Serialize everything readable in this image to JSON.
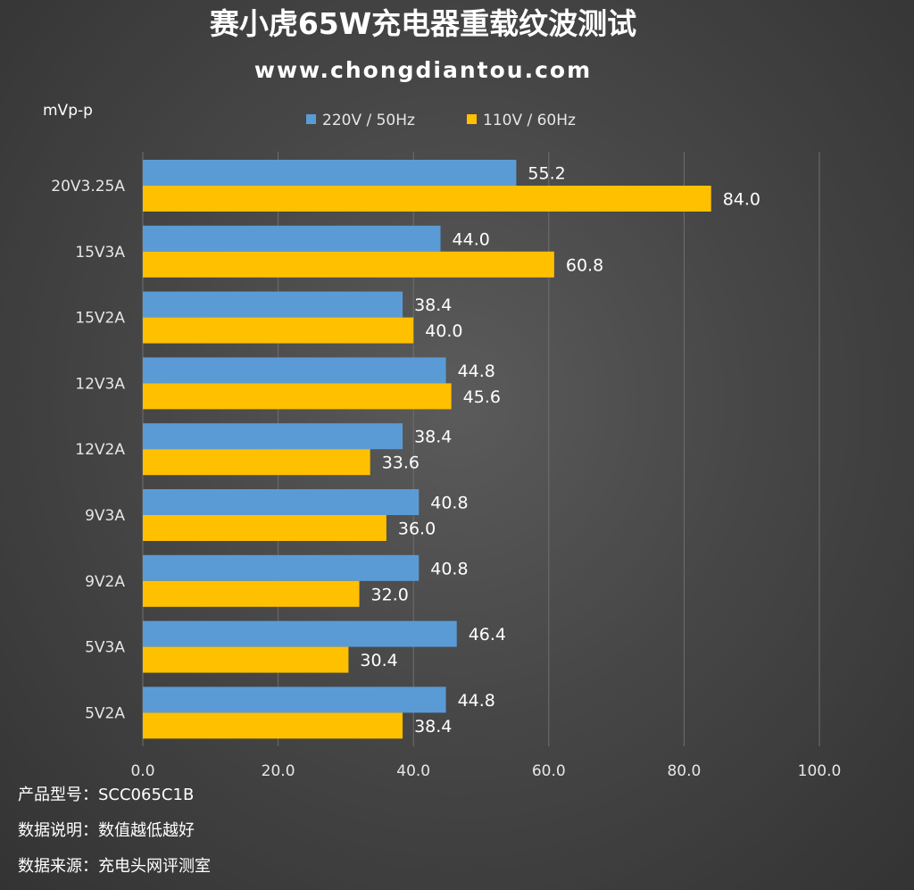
{
  "chart_data": {
    "type": "bar",
    "orientation": "horizontal",
    "title": "赛小虎65W充电器重载纹波测试",
    "subtitle": "www.chongdiantou.com",
    "ylabel": "mVp-p",
    "categories": [
      "20V3.25A",
      "15V3A",
      "15V2A",
      "12V3A",
      "12V2A",
      "9V3A",
      "9V2A",
      "5V3A",
      "5V2A"
    ],
    "series": [
      {
        "name": "220V / 50Hz",
        "color": "#5b9bd5",
        "values": [
          55.2,
          44.0,
          38.4,
          44.8,
          38.4,
          40.8,
          40.8,
          46.4,
          44.8
        ],
        "labels": [
          "55.2",
          "44.0",
          "38.4",
          "44.8",
          "38.4",
          "40.8",
          "40.8",
          "46.4",
          "44.8"
        ]
      },
      {
        "name": "110V / 60Hz",
        "color": "#ffc000",
        "values": [
          84.0,
          60.8,
          40.0,
          45.6,
          33.6,
          36.0,
          32.0,
          30.4,
          38.4
        ],
        "labels": [
          "84.0",
          "60.8",
          "40.0",
          "45.6",
          "33.6",
          "36.0",
          "32.0",
          "30.4",
          "38.4"
        ]
      }
    ],
    "xlim": [
      0,
      100
    ],
    "ticks": [
      "0.0",
      "20.0",
      "40.0",
      "60.0",
      "80.0",
      "100.0"
    ],
    "tick_values": [
      0,
      20,
      40,
      60,
      80,
      100
    ],
    "grid": true,
    "legend_position": "top"
  },
  "notes": [
    "产品型号：SCC065C1B",
    "数据说明：数值越低越好",
    "数据来源：充电头网评测室"
  ]
}
